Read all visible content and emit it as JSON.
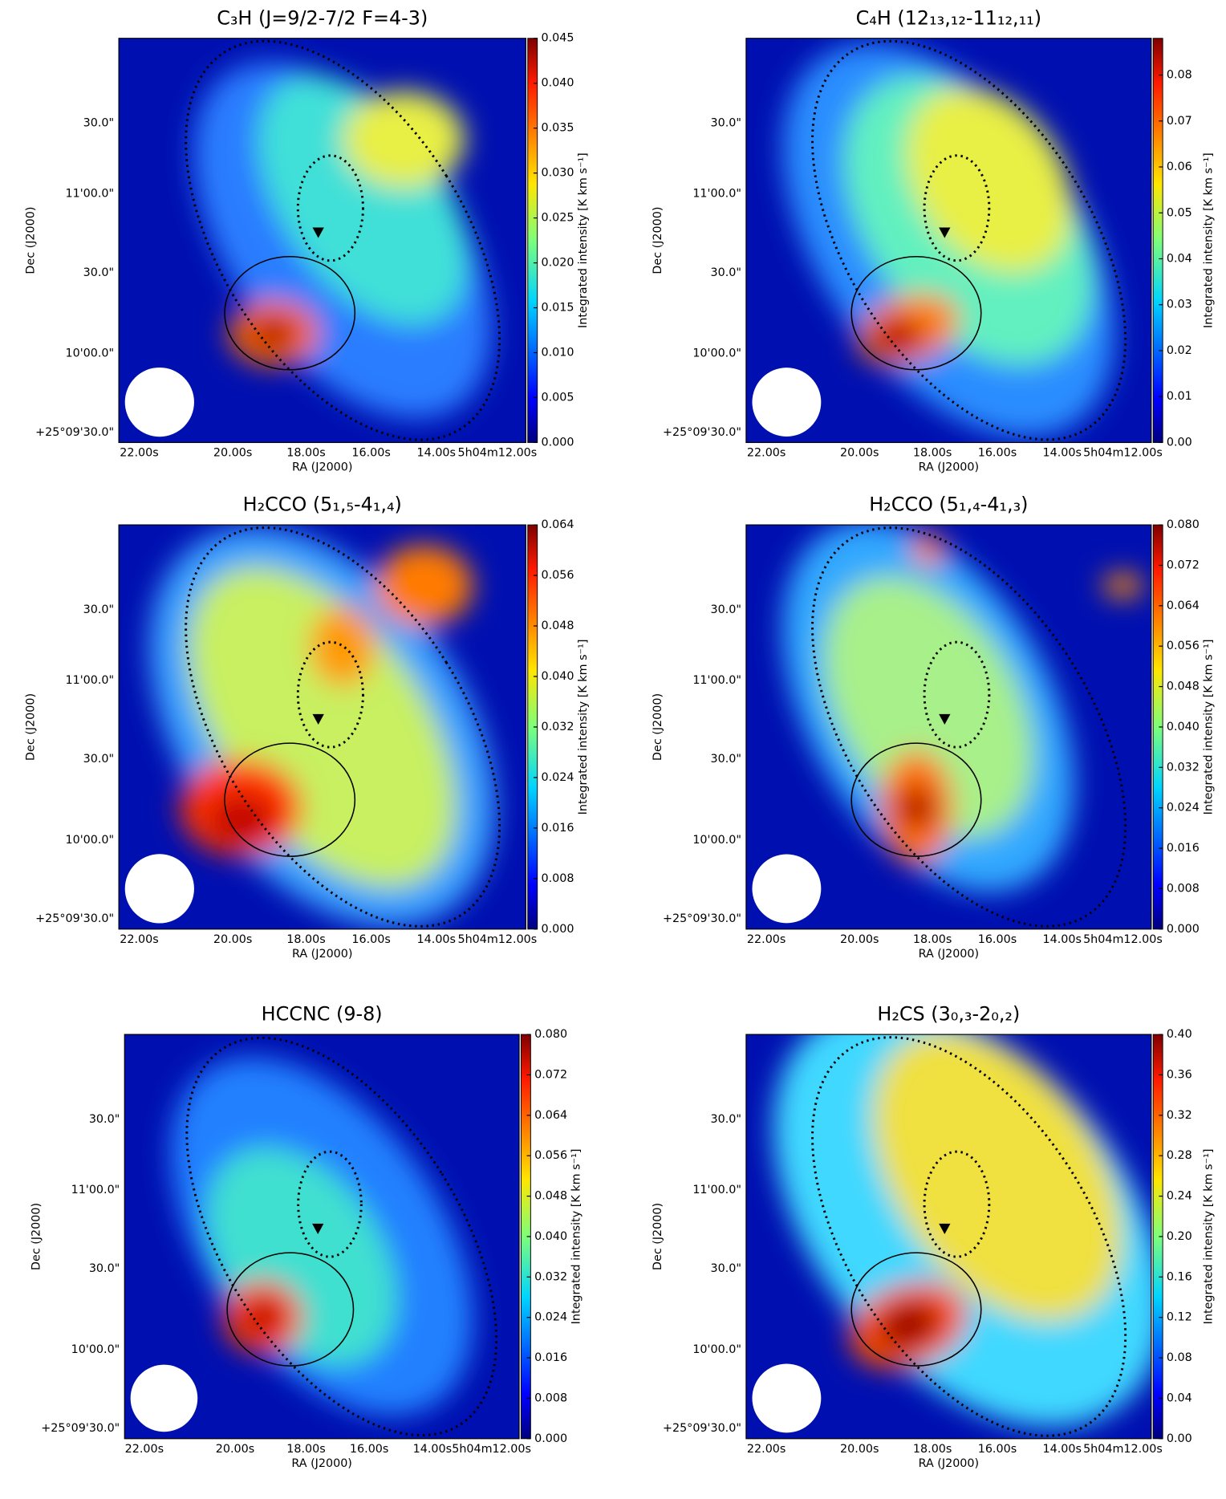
{
  "x_label": "RA (J2000)",
  "y_label": "Dec (J2000)",
  "colorbar_label": "Integrated intensity [K km s⁻¹]",
  "x_ticks": [
    "22.00s",
    "20.00s",
    "18.00s",
    "16.00s",
    "14.00s",
    "5h04m12.00s"
  ],
  "y_ticks": [
    "30.0\"",
    "11'00.0\"",
    "30.0\"",
    "10'00.0\"",
    "+25°09'30.0\""
  ],
  "panels": [
    {
      "title": "C₃H (J=9/2-7/2 F=4-3)",
      "clim": [
        0,
        0.045
      ],
      "cticks": [
        {
          "value": 0,
          "label": "0.000"
        },
        {
          "value": 0.005,
          "label": "0.005"
        },
        {
          "value": 0.01,
          "label": "0.010"
        },
        {
          "value": 0.015,
          "label": "0.015"
        },
        {
          "value": 0.02,
          "label": "0.020"
        },
        {
          "value": 0.025,
          "label": "0.025"
        },
        {
          "value": 0.03,
          "label": "0.030"
        },
        {
          "value": 0.035,
          "label": "0.035"
        },
        {
          "value": 0.04,
          "label": "0.040"
        },
        {
          "value": 0.045,
          "label": "0.045"
        }
      ]
    },
    {
      "title": "C₄H (12₁₃,₁₂-11₁₂,₁₁)",
      "clim": [
        0,
        0.088
      ],
      "cticks": [
        {
          "value": 0,
          "label": "0.00"
        },
        {
          "value": 0.01,
          "label": "0.01"
        },
        {
          "value": 0.02,
          "label": "0.02"
        },
        {
          "value": 0.03,
          "label": "0.03"
        },
        {
          "value": 0.04,
          "label": "0.04"
        },
        {
          "value": 0.05,
          "label": "0.05"
        },
        {
          "value": 0.06,
          "label": "0.06"
        },
        {
          "value": 0.07,
          "label": "0.07"
        },
        {
          "value": 0.08,
          "label": "0.08"
        }
      ]
    },
    {
      "title": "H₂CCO (5₁,₅-4₁,₄)",
      "clim": [
        0,
        0.064
      ],
      "cticks": [
        {
          "value": 0,
          "label": "0.000"
        },
        {
          "value": 0.008,
          "label": "0.008"
        },
        {
          "value": 0.016,
          "label": "0.016"
        },
        {
          "value": 0.024,
          "label": "0.024"
        },
        {
          "value": 0.032,
          "label": "0.032"
        },
        {
          "value": 0.04,
          "label": "0.040"
        },
        {
          "value": 0.048,
          "label": "0.048"
        },
        {
          "value": 0.056,
          "label": "0.056"
        },
        {
          "value": 0.064,
          "label": "0.064"
        }
      ]
    },
    {
      "title": "H₂CCO (5₁,₄-4₁,₃)",
      "clim": [
        0,
        0.08
      ],
      "cticks": [
        {
          "value": 0,
          "label": "0.000"
        },
        {
          "value": 0.008,
          "label": "0.008"
        },
        {
          "value": 0.016,
          "label": "0.016"
        },
        {
          "value": 0.024,
          "label": "0.024"
        },
        {
          "value": 0.032,
          "label": "0.032"
        },
        {
          "value": 0.04,
          "label": "0.040"
        },
        {
          "value": 0.048,
          "label": "0.048"
        },
        {
          "value": 0.056,
          "label": "0.056"
        },
        {
          "value": 0.064,
          "label": "0.064"
        },
        {
          "value": 0.072,
          "label": "0.072"
        },
        {
          "value": 0.08,
          "label": "0.080"
        }
      ]
    },
    {
      "title": "HCCNC (9-8)",
      "clim": [
        0,
        0.08
      ],
      "cticks": [
        {
          "value": 0,
          "label": "0.000"
        },
        {
          "value": 0.008,
          "label": "0.008"
        },
        {
          "value": 0.016,
          "label": "0.016"
        },
        {
          "value": 0.024,
          "label": "0.024"
        },
        {
          "value": 0.032,
          "label": "0.032"
        },
        {
          "value": 0.04,
          "label": "0.040"
        },
        {
          "value": 0.048,
          "label": "0.048"
        },
        {
          "value": 0.056,
          "label": "0.056"
        },
        {
          "value": 0.064,
          "label": "0.064"
        },
        {
          "value": 0.072,
          "label": "0.072"
        },
        {
          "value": 0.08,
          "label": "0.080"
        }
      ]
    },
    {
      "title": "H₂CS (3₀,₃-2₀,₂)",
      "clim": [
        0,
        0.4
      ],
      "cticks": [
        {
          "value": 0,
          "label": "0.00"
        },
        {
          "value": 0.04,
          "label": "0.04"
        },
        {
          "value": 0.08,
          "label": "0.08"
        },
        {
          "value": 0.12,
          "label": "0.12"
        },
        {
          "value": 0.16,
          "label": "0.16"
        },
        {
          "value": 0.2,
          "label": "0.20"
        },
        {
          "value": 0.24,
          "label": "0.24"
        },
        {
          "value": 0.28,
          "label": "0.28"
        },
        {
          "value": 0.32,
          "label": "0.32"
        },
        {
          "value": 0.36,
          "label": "0.36"
        },
        {
          "value": 0.4,
          "label": "0.40"
        }
      ]
    }
  ]
}
